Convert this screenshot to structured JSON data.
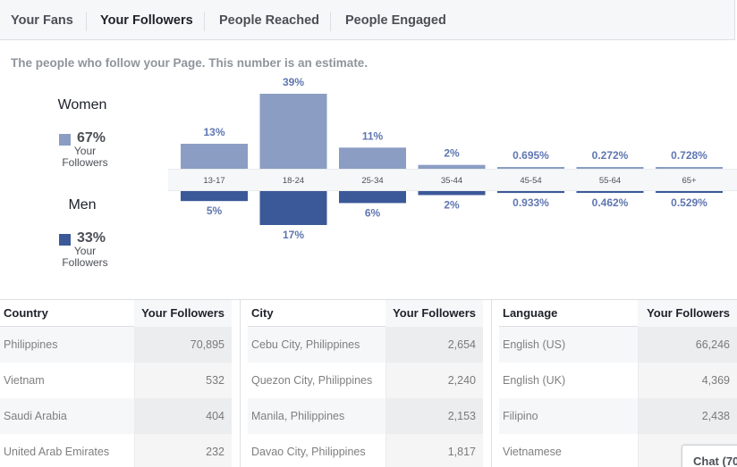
{
  "tabs": [
    {
      "label": "Your Fans",
      "active": false
    },
    {
      "label": "Your Followers",
      "active": true
    },
    {
      "label": "People Reached",
      "active": false
    },
    {
      "label": "People Engaged",
      "active": false
    }
  ],
  "subtitle": "The people who follow your Page. This number is an estimate.",
  "legend": {
    "women": {
      "label": "Women",
      "percent": "67%",
      "caption": "Your Followers",
      "color": "#8b9dc3"
    },
    "men": {
      "label": "Men",
      "percent": "33%",
      "caption": "Your Followers",
      "color": "#3b5998"
    }
  },
  "chart_data": {
    "type": "bar",
    "categories": [
      "13-17",
      "18-24",
      "25-34",
      "35-44",
      "45-54",
      "55-64",
      "65+"
    ],
    "series": [
      {
        "name": "Women",
        "values": [
          13,
          39,
          11,
          2,
          0.695,
          0.272,
          0.728
        ],
        "labels": [
          "13%",
          "39%",
          "11%",
          "2%",
          "0.695%",
          "0.272%",
          "0.728%"
        ],
        "color": "#8b9dc3"
      },
      {
        "name": "Men",
        "values": [
          5,
          17,
          6,
          2,
          0.933,
          0.462,
          0.529
        ],
        "labels": [
          "5%",
          "17%",
          "6%",
          "2%",
          "0.933%",
          "0.462%",
          "0.529%"
        ],
        "color": "#3b5998"
      }
    ],
    "title": "",
    "xlabel": "",
    "ylabel": ""
  },
  "tables": [
    {
      "headers": [
        "Country",
        "Your Followers"
      ],
      "rows": [
        [
          "Philippines",
          "70,895"
        ],
        [
          "Vietnam",
          "532"
        ],
        [
          "Saudi Arabia",
          "404"
        ],
        [
          "United Arab Emirates",
          "232"
        ]
      ]
    },
    {
      "headers": [
        "City",
        "Your Followers"
      ],
      "rows": [
        [
          "Cebu City, Philippines",
          "2,654"
        ],
        [
          "Quezon City, Philippines",
          "2,240"
        ],
        [
          "Manila, Philippines",
          "2,153"
        ],
        [
          "Davao City, Philippines",
          "1,817"
        ]
      ]
    },
    {
      "headers": [
        "Language",
        "Your Followers"
      ],
      "rows": [
        [
          "English (US)",
          "66,246"
        ],
        [
          "English (UK)",
          "4,369"
        ],
        [
          "Filipino",
          "2,438"
        ],
        [
          "Vietnamese",
          ""
        ]
      ]
    }
  ],
  "chat": {
    "label": "Chat (70"
  }
}
